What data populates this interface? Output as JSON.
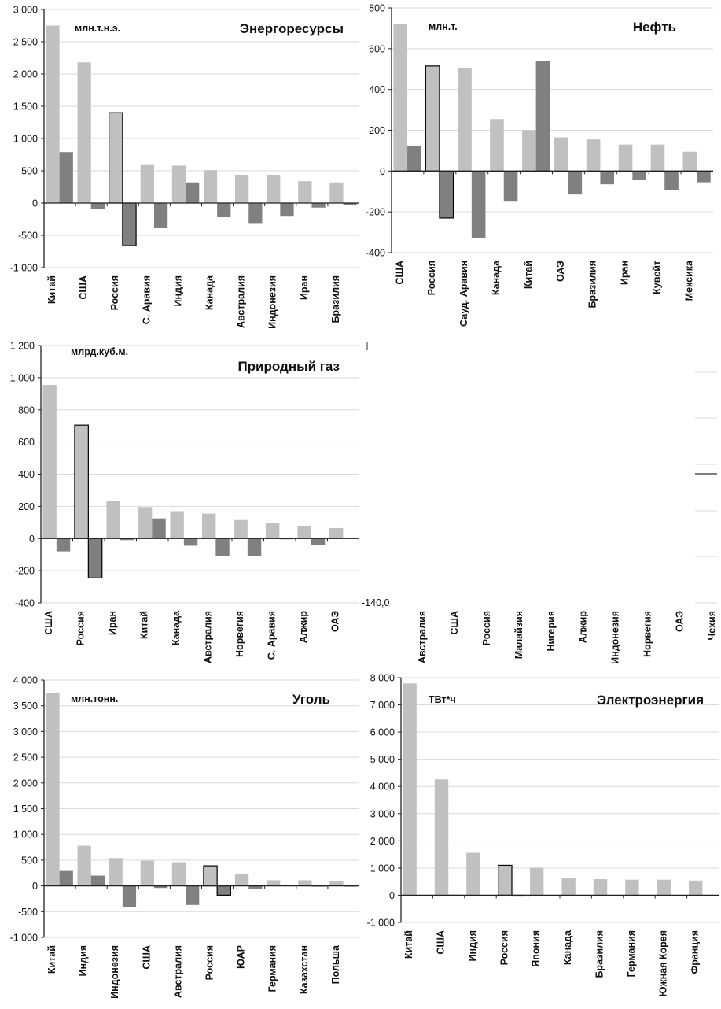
{
  "colors": {
    "production": "#c0c0c0",
    "balance": "#808080",
    "grid": "#d9d9d9",
    "axis": "#222222",
    "highlight_outline": "#000000"
  },
  "chart_data": [
    {
      "id": "energy",
      "type": "bar",
      "title": "Энергоресурсы",
      "unit": "млн.т.н.э.",
      "ylim": [
        -1000,
        3000
      ],
      "yticks": [
        -1000,
        -500,
        0,
        500,
        1000,
        1500,
        2000,
        2500,
        3000
      ],
      "ytick_labels": [
        "-1 000",
        "-500",
        "0",
        "500",
        "1 000",
        "1 500",
        "2 000",
        "2 500",
        "3 000"
      ],
      "grid": true,
      "categories": [
        "Китай",
        "США",
        "Россия",
        "С. Аравия",
        "Индия",
        "Канада",
        "Австралия",
        "Индонезия",
        "Иран",
        "Бразилия"
      ],
      "highlight": "Россия",
      "series": [
        {
          "name": "production",
          "values": [
            2750,
            2180,
            1400,
            590,
            580,
            510,
            440,
            440,
            340,
            320
          ]
        },
        {
          "name": "balance",
          "values": [
            790,
            -90,
            -660,
            -390,
            320,
            -220,
            -310,
            -210,
            -70,
            -30
          ]
        }
      ]
    },
    {
      "id": "oil",
      "type": "bar",
      "title": "Нефть",
      "unit": "млн.т.",
      "ylim": [
        -400,
        800
      ],
      "yticks": [
        -400,
        -200,
        0,
        200,
        400,
        600,
        800
      ],
      "ytick_labels": [
        "-400",
        "-200",
        "0",
        "200",
        "400",
        "600",
        "800"
      ],
      "grid": true,
      "categories": [
        "США",
        "Россия",
        "Сауд. Аравия",
        "Канада",
        "Китай",
        "ОАЭ",
        "Бразилия",
        "Иран",
        "Кувейт",
        "Мексика"
      ],
      "highlight": "Россия",
      "series": [
        {
          "name": "production",
          "values": [
            720,
            515,
            505,
            255,
            200,
            165,
            155,
            130,
            130,
            95
          ]
        },
        {
          "name": "balance",
          "values": [
            125,
            -230,
            -330,
            -150,
            540,
            -115,
            -65,
            -45,
            -95,
            -55
          ]
        }
      ]
    },
    {
      "id": "gas",
      "type": "bar",
      "title": "Природный газ",
      "unit": "млрд.куб.м.",
      "ylim": [
        -400,
        1200
      ],
      "yticks": [
        -400,
        -200,
        0,
        200,
        400,
        600,
        800,
        1000,
        1200
      ],
      "ytick_labels": [
        "-400",
        "-200",
        "0",
        "200",
        "400",
        "600",
        "800",
        "1 000",
        "1 200"
      ],
      "grid": true,
      "categories": [
        "США",
        "Россия",
        "Иран",
        "Китай",
        "Канада",
        "Австралия",
        "Норвегия",
        "С. Аравия",
        "Алжир",
        "ОАЭ"
      ],
      "highlight": "Россия",
      "series": [
        {
          "name": "production",
          "values": [
            955,
            705,
            235,
            195,
            170,
            155,
            115,
            95,
            80,
            65
          ]
        },
        {
          "name": "balance",
          "values": [
            -80,
            -245,
            -10,
            125,
            -45,
            -110,
            -110,
            0,
            -40,
            5
          ]
        }
      ]
    },
    {
      "id": "blank",
      "type": "bar",
      "title": "",
      "unit": "",
      "ytick_labels": [
        "-140,0"
      ],
      "grid": true,
      "categories": [
        "Австралия",
        "США",
        "Россия",
        "Малайзия",
        "Нигерия",
        "Алжир",
        "Индонезия",
        "Норвегия",
        "ОАЭ",
        "Чехия"
      ],
      "series": []
    },
    {
      "id": "coal",
      "type": "bar",
      "title": "Уголь",
      "unit": "млн.тонн.",
      "ylim": [
        -1000,
        4000
      ],
      "yticks": [
        -1000,
        -500,
        0,
        500,
        1000,
        1500,
        2000,
        2500,
        3000,
        3500,
        4000
      ],
      "ytick_labels": [
        "-1 000",
        "-500",
        "0",
        "500",
        "1 000",
        "1 500",
        "2 000",
        "2 500",
        "3 000",
        "3 500",
        "4 000"
      ],
      "grid": true,
      "categories": [
        "Китай",
        "Индия",
        "Индонезия",
        "США",
        "Австралия",
        "Россия",
        "ЮАР",
        "Германия",
        "Казахстан",
        "Польша"
      ],
      "highlight": "Россия",
      "series": [
        {
          "name": "production",
          "values": [
            3740,
            780,
            540,
            490,
            460,
            390,
            240,
            110,
            110,
            90
          ]
        },
        {
          "name": "balance",
          "values": [
            290,
            200,
            -410,
            -40,
            -370,
            -180,
            -60,
            10,
            -10,
            0
          ]
        }
      ]
    },
    {
      "id": "electricity",
      "type": "bar",
      "title": "Электроэнергия",
      "unit": "ТВт*ч",
      "ylim": [
        -1000,
        8000
      ],
      "yticks": [
        -1000,
        0,
        1000,
        2000,
        3000,
        4000,
        5000,
        6000,
        7000,
        8000
      ],
      "ytick_labels": [
        "-1 000",
        "0",
        "1 000",
        "2 000",
        "3 000",
        "4 000",
        "5 000",
        "6 000",
        "7 000",
        "8 000"
      ],
      "grid": true,
      "categories": [
        "Китай",
        "США",
        "Индия",
        "Россия",
        "Япония",
        "Канада",
        "Бразилия",
        "Германия",
        "Южная Корея",
        "Франция"
      ],
      "highlight": "Россия",
      "series": [
        {
          "name": "production",
          "values": [
            7790,
            4260,
            1560,
            1100,
            1010,
            640,
            590,
            570,
            570,
            540
          ]
        },
        {
          "name": "balance",
          "values": [
            -30,
            20,
            0,
            -30,
            0,
            -30,
            0,
            -30,
            0,
            -40
          ]
        }
      ]
    }
  ]
}
